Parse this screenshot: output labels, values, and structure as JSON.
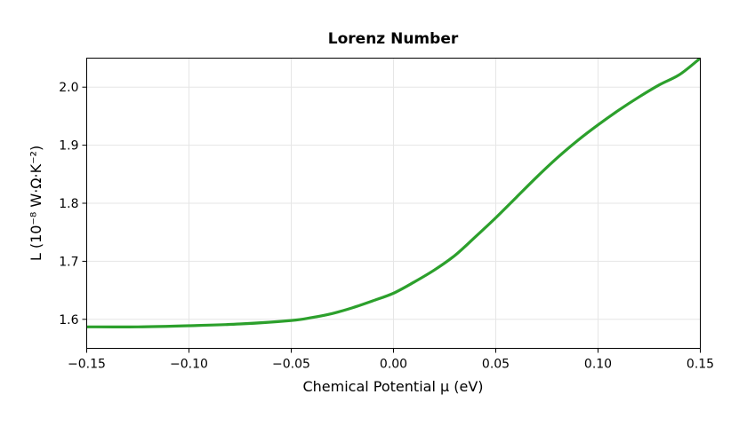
{
  "chart_data": {
    "type": "line",
    "title": "Lorenz Number",
    "xlabel": "Chemical Potential μ (eV)",
    "ylabel": "L (10⁻⁸ W·Ω·K⁻²)",
    "xlim": [
      -0.15,
      0.15
    ],
    "ylim": [
      1.55,
      2.05
    ],
    "xticks": [
      -0.15,
      -0.1,
      -0.05,
      0.0,
      0.05,
      0.1,
      0.15
    ],
    "xtick_labels": [
      "−0.15",
      "−0.10",
      "−0.05",
      "0.00",
      "0.05",
      "0.10",
      "0.15"
    ],
    "yticks": [
      1.6,
      1.7,
      1.8,
      1.9,
      2.0
    ],
    "ytick_labels": [
      "1.6",
      "1.7",
      "1.8",
      "1.9",
      "2.0"
    ],
    "grid": true,
    "series": [
      {
        "color": "#2ca02c",
        "x": [
          -0.15,
          -0.125,
          -0.1,
          -0.075,
          -0.05,
          -0.04,
          -0.03,
          -0.02,
          -0.01,
          0.0,
          0.01,
          0.02,
          0.03,
          0.04,
          0.05,
          0.06,
          0.07,
          0.08,
          0.09,
          0.1,
          0.11,
          0.12,
          0.13,
          0.14,
          0.15
        ],
        "y": [
          1.587,
          1.587,
          1.589,
          1.592,
          1.598,
          1.603,
          1.61,
          1.62,
          1.632,
          1.645,
          1.664,
          1.685,
          1.71,
          1.742,
          1.775,
          1.81,
          1.845,
          1.878,
          1.908,
          1.935,
          1.96,
          1.983,
          2.004,
          2.022,
          2.05
        ]
      }
    ]
  }
}
